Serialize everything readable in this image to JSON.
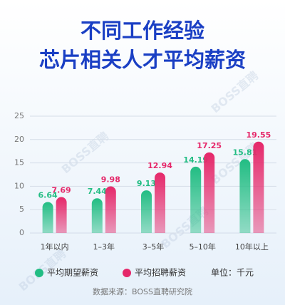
{
  "chart_data": {
    "type": "bar",
    "title": "不同工作经验",
    "subtitle": "芯片相关人才平均薪资",
    "categories": [
      "1年以内",
      "1–3年",
      "3–5年",
      "5–10年",
      "10年以上"
    ],
    "series": [
      {
        "name": "平均期望薪资",
        "color": "#22bd83",
        "values": [
          6.64,
          7.44,
          9.13,
          14.19,
          15.81
        ]
      },
      {
        "name": "平均招聘薪资",
        "color": "#e5286a",
        "values": [
          7.69,
          9.98,
          12.94,
          17.25,
          19.55
        ]
      }
    ],
    "ylim": [
      0,
      25
    ],
    "yticks": [
      0,
      5,
      10,
      15,
      20,
      25
    ],
    "grid": true,
    "unit": "单位：千元",
    "source": "数据来源：BOSS直聘研究院",
    "watermark": "BOSS直聘"
  }
}
